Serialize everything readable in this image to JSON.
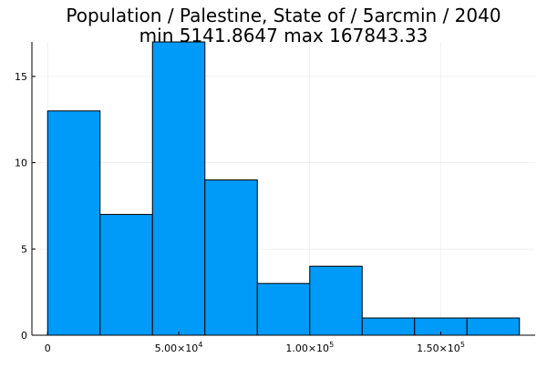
{
  "chart_data": {
    "type": "bar",
    "title": "Population / Palestine, State of / 5arcmin / 2040",
    "subtitle": "min 5141.8647  max 167843.33",
    "xlabel": "",
    "ylabel": "",
    "bin_edges": [
      0,
      20000,
      40000,
      60000,
      80000,
      100000,
      120000,
      140000,
      160000,
      180000
    ],
    "values": [
      13,
      7,
      17,
      9,
      3,
      4,
      1,
      1,
      1
    ],
    "xlim": [
      -6000,
      186000
    ],
    "ylim": [
      0,
      17
    ],
    "x_ticks": [
      {
        "value": 0,
        "mantissa": "0",
        "exponent": ""
      },
      {
        "value": 50000,
        "mantissa": "5.00×10",
        "exponent": "4"
      },
      {
        "value": 100000,
        "mantissa": "1.00×10",
        "exponent": "5"
      },
      {
        "value": 150000,
        "mantissa": "1.50×10",
        "exponent": "5"
      }
    ],
    "y_ticks": [
      {
        "value": 0,
        "label": "0"
      },
      {
        "value": 5,
        "label": "5"
      },
      {
        "value": 10,
        "label": "10"
      },
      {
        "value": 15,
        "label": "15"
      }
    ],
    "bar_color": "#009af9",
    "grid": true,
    "legend": "none"
  }
}
